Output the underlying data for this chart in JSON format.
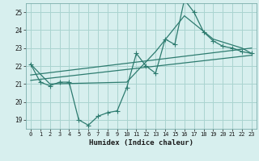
{
  "xlabel": "Humidex (Indice chaleur)",
  "background_color": "#d7efee",
  "grid_color": "#aad4d0",
  "line_color": "#2d7b6f",
  "xlim": [
    -0.5,
    23.5
  ],
  "ylim": [
    18.5,
    25.5
  ],
  "xticks": [
    0,
    1,
    2,
    3,
    4,
    5,
    6,
    7,
    8,
    9,
    10,
    11,
    12,
    13,
    14,
    15,
    16,
    17,
    18,
    19,
    20,
    21,
    22,
    23
  ],
  "yticks": [
    19,
    20,
    21,
    22,
    23,
    24,
    25
  ],
  "line1_x": [
    0,
    1,
    2,
    3,
    4,
    5,
    6,
    7,
    8,
    9,
    10,
    11,
    12,
    13,
    14,
    15,
    16,
    17,
    18,
    19,
    20,
    21,
    22,
    23
  ],
  "line1_y": [
    22.1,
    21.1,
    20.9,
    21.1,
    21.1,
    19.0,
    18.7,
    19.2,
    19.4,
    19.5,
    20.8,
    22.7,
    22.0,
    21.6,
    23.5,
    23.2,
    25.7,
    25.0,
    23.9,
    23.4,
    23.1,
    23.0,
    22.8,
    22.7
  ],
  "line2_x": [
    0,
    2,
    10,
    13,
    16,
    19,
    22,
    23
  ],
  "line2_y": [
    22.1,
    21.0,
    21.1,
    22.8,
    24.8,
    23.5,
    23.0,
    22.7
  ],
  "line3_x": [
    0,
    23
  ],
  "line3_y": [
    21.5,
    23.0
  ],
  "line4_x": [
    0,
    23
  ],
  "line4_y": [
    21.2,
    22.6
  ]
}
